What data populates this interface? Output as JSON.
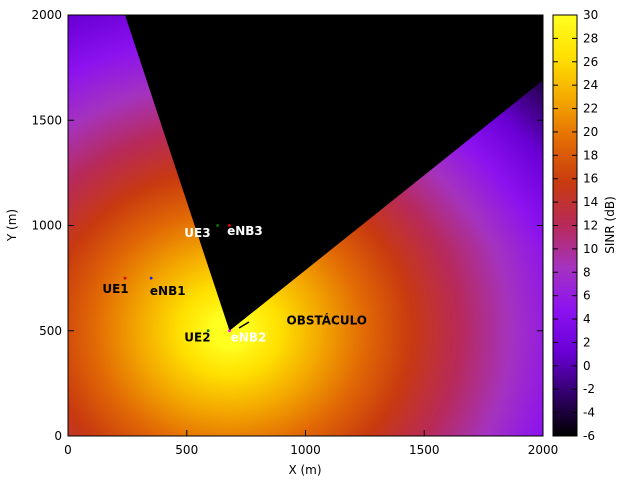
{
  "chart_data": {
    "type": "heatmap",
    "title": "",
    "xlabel": "X (m)",
    "ylabel": "Y (m)",
    "colorbar_label": "SINR (dB)",
    "xlim": [
      0,
      2000
    ],
    "ylim": [
      0,
      2000
    ],
    "clim": [
      -6,
      30
    ],
    "x_ticks": [
      0,
      500,
      1000,
      1500,
      2000
    ],
    "y_ticks": [
      0,
      500,
      1000,
      1500,
      2000
    ],
    "colorbar_ticks": [
      -6,
      -4,
      -2,
      0,
      2,
      4,
      6,
      8,
      10,
      12,
      14,
      16,
      18,
      20,
      22,
      24,
      26,
      28,
      30
    ],
    "colormap_stops": [
      "#000000",
      "#32006a",
      "#6a00d6",
      "#8c12f0",
      "#a533c0",
      "#b82a5a",
      "#c83a10",
      "#e26a05",
      "#f4a800",
      "#ffe000",
      "#ffff20"
    ],
    "shadow_region": {
      "label": "OBSTÁCULO",
      "sinr_db": -6,
      "polygon": [
        [
          240,
          2000
        ],
        [
          2000,
          2000
        ],
        [
          2000,
          1690
        ],
        [
          680,
          500
        ]
      ]
    },
    "markers": [
      {
        "label": "UE1",
        "x": 240,
        "y": 750,
        "color": "#d00000"
      },
      {
        "label": "eNB1",
        "x": 350,
        "y": 750,
        "color": "#1a1aff"
      },
      {
        "label": "UE2",
        "x": 590,
        "y": 500,
        "color": "#008000"
      },
      {
        "label": "eNB2",
        "x": 680,
        "y": 500,
        "color": "#ff00ff"
      },
      {
        "label": "UE3",
        "x": 630,
        "y": 1000,
        "color": "#008000"
      },
      {
        "label": "eNB3",
        "x": 680,
        "y": 1000,
        "color": "#ff0000"
      }
    ],
    "annotations": [
      {
        "text": "UE1",
        "x": 200,
        "y": 680,
        "color": "#000000"
      },
      {
        "text": "eNB1",
        "x": 420,
        "y": 670,
        "color": "#000000"
      },
      {
        "text": "UE2",
        "x": 545,
        "y": 450,
        "color": "#000000"
      },
      {
        "text": "eNB2",
        "x": 760,
        "y": 450,
        "color": "#ffffff"
      },
      {
        "text": "UE3",
        "x": 545,
        "y": 945,
        "color": "#ffffff"
      },
      {
        "text": "eNB3",
        "x": 745,
        "y": 955,
        "color": "#ffffff"
      },
      {
        "text": "OBSTÁCULO",
        "x": 920,
        "y": 530,
        "color": "#000000"
      }
    ],
    "grid": false,
    "legend": "none"
  }
}
